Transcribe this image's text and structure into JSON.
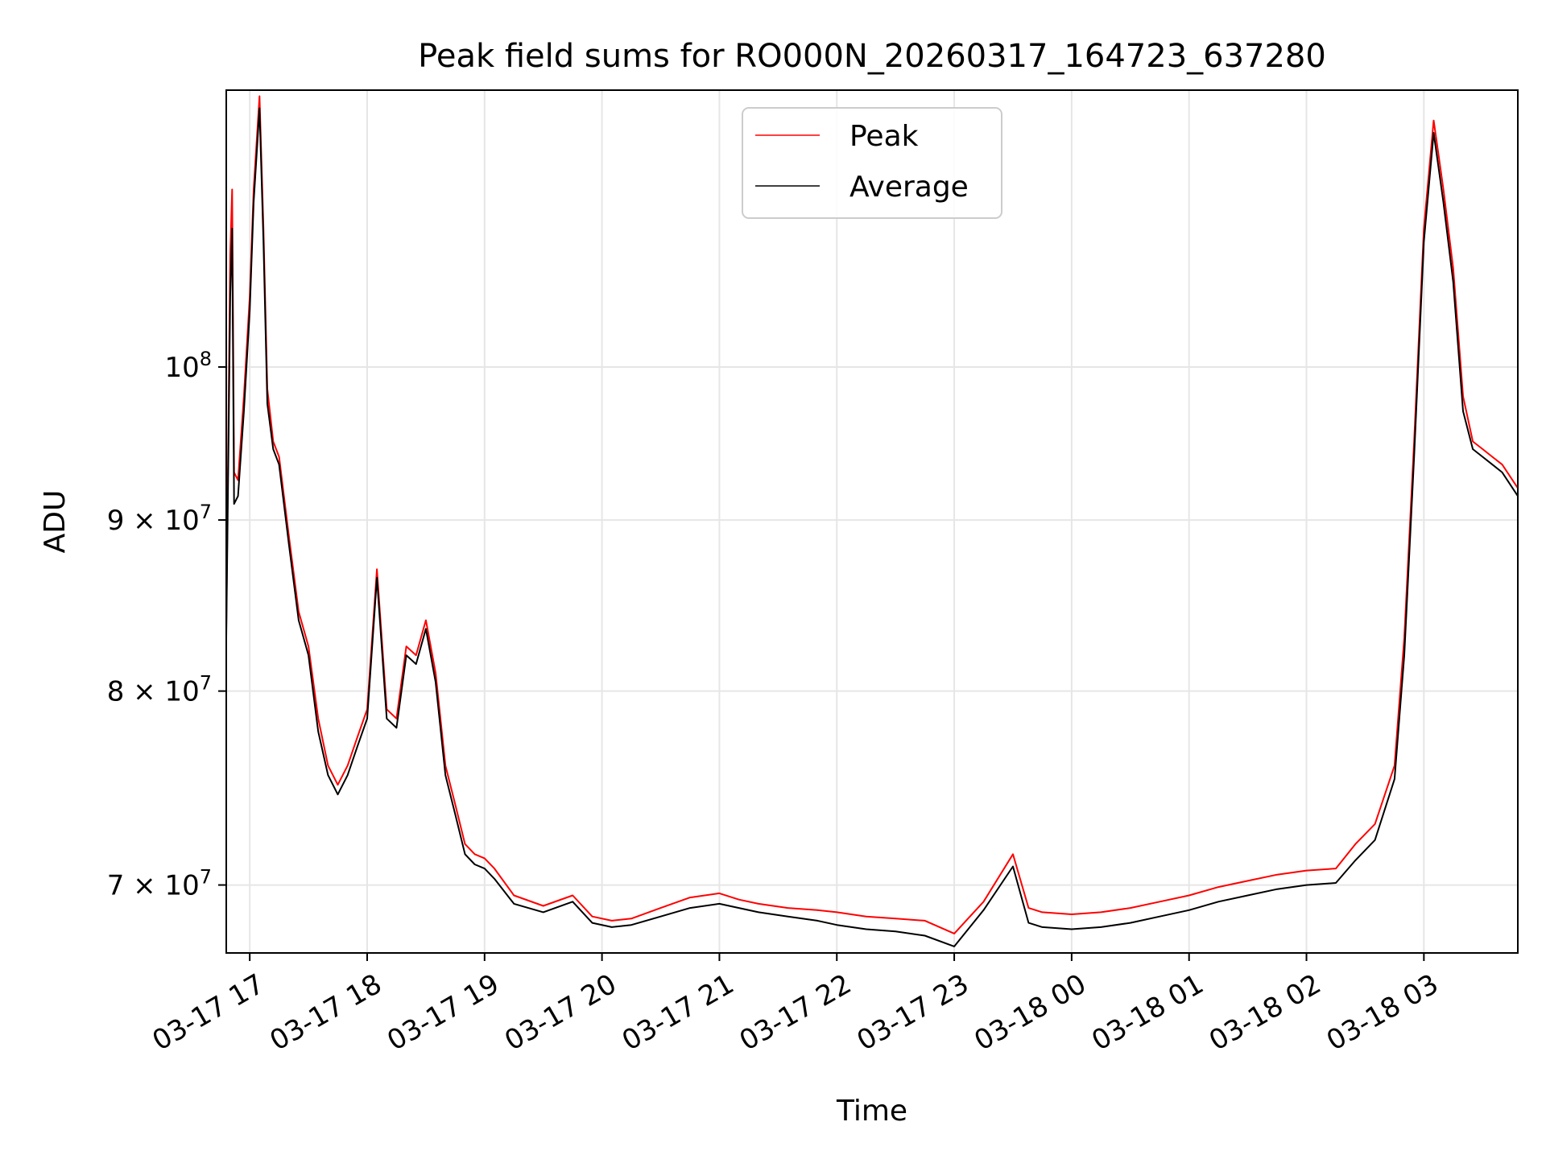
{
  "chart_data": {
    "type": "line",
    "title": "Peak field sums for RO000N_20260317_164723_637280",
    "xlabel": "Time",
    "ylabel": "ADU",
    "yscale": "log",
    "xlim": [
      "2026-03-17 16:48",
      "2026-03-18 03:48"
    ],
    "ylim": [
      66800000,
      121000000
    ],
    "grid": true,
    "legend_position": "upper center",
    "x_ticks": [
      {
        "value": "2026-03-17 17:00",
        "label": "03-17 17"
      },
      {
        "value": "2026-03-17 18:00",
        "label": "03-17 18"
      },
      {
        "value": "2026-03-17 19:00",
        "label": "03-17 19"
      },
      {
        "value": "2026-03-17 20:00",
        "label": "03-17 20"
      },
      {
        "value": "2026-03-17 21:00",
        "label": "03-17 21"
      },
      {
        "value": "2026-03-17 22:00",
        "label": "03-17 22"
      },
      {
        "value": "2026-03-17 23:00",
        "label": "03-17 23"
      },
      {
        "value": "2026-03-18 00:00",
        "label": "03-18 00"
      },
      {
        "value": "2026-03-18 01:00",
        "label": "03-18 01"
      },
      {
        "value": "2026-03-18 02:00",
        "label": "03-18 02"
      },
      {
        "value": "2026-03-18 03:00",
        "label": "03-18 03"
      }
    ],
    "y_ticks": [
      {
        "value": 70000000,
        "base": "7",
        "label_mantissa": "7 × 10",
        "exponent": "7"
      },
      {
        "value": 80000000,
        "label_mantissa": "8 × 10",
        "exponent": "7"
      },
      {
        "value": 90000000,
        "label_mantissa": "9 × 10",
        "exponent": "7"
      },
      {
        "value": 100000000,
        "label_mantissa": "10",
        "exponent": "8"
      }
    ],
    "series": [
      {
        "name": "Peak",
        "color": "#ff0000",
        "x": [
          "2026-03-17 16:48",
          "2026-03-17 16:50",
          "2026-03-17 16:51",
          "2026-03-17 16:52",
          "2026-03-17 16:54",
          "2026-03-17 16:57",
          "2026-03-17 17:00",
          "2026-03-17 17:02",
          "2026-03-17 17:05",
          "2026-03-17 17:07",
          "2026-03-17 17:09",
          "2026-03-17 17:12",
          "2026-03-17 17:15",
          "2026-03-17 17:20",
          "2026-03-17 17:25",
          "2026-03-17 17:30",
          "2026-03-17 17:35",
          "2026-03-17 17:40",
          "2026-03-17 17:45",
          "2026-03-17 17:50",
          "2026-03-17 17:55",
          "2026-03-17 18:00",
          "2026-03-17 18:05",
          "2026-03-17 18:10",
          "2026-03-17 18:15",
          "2026-03-17 18:20",
          "2026-03-17 18:25",
          "2026-03-17 18:30",
          "2026-03-17 18:35",
          "2026-03-17 18:40",
          "2026-03-17 18:45",
          "2026-03-17 18:50",
          "2026-03-17 18:55",
          "2026-03-17 19:00",
          "2026-03-17 19:05",
          "2026-03-17 19:15",
          "2026-03-17 19:30",
          "2026-03-17 19:45",
          "2026-03-17 19:55",
          "2026-03-17 20:05",
          "2026-03-17 20:15",
          "2026-03-17 20:30",
          "2026-03-17 20:45",
          "2026-03-17 21:00",
          "2026-03-17 21:10",
          "2026-03-17 21:20",
          "2026-03-17 21:35",
          "2026-03-17 21:50",
          "2026-03-17 22:00",
          "2026-03-17 22:15",
          "2026-03-17 22:30",
          "2026-03-17 22:45",
          "2026-03-17 23:00",
          "2026-03-17 23:15",
          "2026-03-17 23:30",
          "2026-03-17 23:38",
          "2026-03-17 23:45",
          "2026-03-18 00:00",
          "2026-03-18 00:15",
          "2026-03-18 00:30",
          "2026-03-18 00:45",
          "2026-03-18 01:00",
          "2026-03-18 01:15",
          "2026-03-18 01:30",
          "2026-03-18 01:45",
          "2026-03-18 02:00",
          "2026-03-18 02:15",
          "2026-03-18 02:25",
          "2026-03-18 02:35",
          "2026-03-18 02:45",
          "2026-03-18 02:50",
          "2026-03-18 02:55",
          "2026-03-18 03:00",
          "2026-03-18 03:05",
          "2026-03-18 03:10",
          "2026-03-18 03:15",
          "2026-03-18 03:20",
          "2026-03-18 03:25",
          "2026-03-18 03:30",
          "2026-03-18 03:35",
          "2026-03-18 03:40",
          "2026-03-18 03:48"
        ],
        "y": [
          83500000,
          108000000,
          113000000,
          93000000,
          92500000,
          98000000,
          105000000,
          113000000,
          120500000,
          110000000,
          98500000,
          95000000,
          94000000,
          89000000,
          84500000,
          82500000,
          78500000,
          76000000,
          75000000,
          76000000,
          77500000,
          79000000,
          87000000,
          79000000,
          78500000,
          82500000,
          82000000,
          84000000,
          81000000,
          76000000,
          74000000,
          72000000,
          71500000,
          71300000,
          70800000,
          69500000,
          69000000,
          69500000,
          68500000,
          68300000,
          68400000,
          68900000,
          69400000,
          69600000,
          69300000,
          69100000,
          68900000,
          68800000,
          68700000,
          68500000,
          68400000,
          68300000,
          67700000,
          69200000,
          71500000,
          68900000,
          68700000,
          68600000,
          68700000,
          68900000,
          69200000,
          69500000,
          69900000,
          70200000,
          70500000,
          70700000,
          70800000,
          72000000,
          73000000,
          76000000,
          83000000,
          95000000,
          110000000,
          118500000,
          113000000,
          107000000,
          98000000,
          95000000,
          94500000,
          94000000,
          93500000,
          92000000
        ]
      },
      {
        "name": "Average",
        "color": "#000000",
        "x": [
          "2026-03-17 16:48",
          "2026-03-17 16:50",
          "2026-03-17 16:51",
          "2026-03-17 16:52",
          "2026-03-17 16:54",
          "2026-03-17 16:57",
          "2026-03-17 17:00",
          "2026-03-17 17:02",
          "2026-03-17 17:05",
          "2026-03-17 17:07",
          "2026-03-17 17:09",
          "2026-03-17 17:12",
          "2026-03-17 17:15",
          "2026-03-17 17:20",
          "2026-03-17 17:25",
          "2026-03-17 17:30",
          "2026-03-17 17:35",
          "2026-03-17 17:40",
          "2026-03-17 17:45",
          "2026-03-17 17:50",
          "2026-03-17 17:55",
          "2026-03-17 18:00",
          "2026-03-17 18:05",
          "2026-03-17 18:10",
          "2026-03-17 18:15",
          "2026-03-17 18:20",
          "2026-03-17 18:25",
          "2026-03-17 18:30",
          "2026-03-17 18:35",
          "2026-03-17 18:40",
          "2026-03-17 18:45",
          "2026-03-17 18:50",
          "2026-03-17 18:55",
          "2026-03-17 19:00",
          "2026-03-17 19:05",
          "2026-03-17 19:15",
          "2026-03-17 19:30",
          "2026-03-17 19:45",
          "2026-03-17 19:55",
          "2026-03-17 20:05",
          "2026-03-17 20:15",
          "2026-03-17 20:30",
          "2026-03-17 20:45",
          "2026-03-17 21:00",
          "2026-03-17 21:10",
          "2026-03-17 21:20",
          "2026-03-17 21:35",
          "2026-03-17 21:50",
          "2026-03-17 22:00",
          "2026-03-17 22:15",
          "2026-03-17 22:30",
          "2026-03-17 22:45",
          "2026-03-17 23:00",
          "2026-03-17 23:15",
          "2026-03-17 23:30",
          "2026-03-17 23:38",
          "2026-03-17 23:45",
          "2026-03-18 00:00",
          "2026-03-18 00:15",
          "2026-03-18 00:30",
          "2026-03-18 00:45",
          "2026-03-18 01:00",
          "2026-03-18 01:15",
          "2026-03-18 01:30",
          "2026-03-18 01:45",
          "2026-03-18 02:00",
          "2026-03-18 02:15",
          "2026-03-18 02:25",
          "2026-03-18 02:35",
          "2026-03-18 02:45",
          "2026-03-18 02:50",
          "2026-03-18 02:55",
          "2026-03-18 03:00",
          "2026-03-18 03:05",
          "2026-03-18 03:10",
          "2026-03-18 03:15",
          "2026-03-18 03:20",
          "2026-03-18 03:25",
          "2026-03-18 03:30",
          "2026-03-18 03:35",
          "2026-03-18 03:40",
          "2026-03-18 03:48"
        ],
        "y": [
          83000000,
          105000000,
          110000000,
          91000000,
          91500000,
          97000000,
          104000000,
          112000000,
          119500000,
          109000000,
          97500000,
          94500000,
          93500000,
          88500000,
          84000000,
          82000000,
          77800000,
          75500000,
          74500000,
          75500000,
          77000000,
          78500000,
          86500000,
          78500000,
          78000000,
          82000000,
          81500000,
          83500000,
          80500000,
          75500000,
          73500000,
          71500000,
          71000000,
          70800000,
          70300000,
          69100000,
          68700000,
          69200000,
          68200000,
          68000000,
          68100000,
          68500000,
          68900000,
          69100000,
          68900000,
          68700000,
          68500000,
          68300000,
          68100000,
          67900000,
          67800000,
          67600000,
          67100000,
          68800000,
          70900000,
          68200000,
          68000000,
          67900000,
          68000000,
          68200000,
          68500000,
          68800000,
          69200000,
          69500000,
          69800000,
          70000000,
          70100000,
          71200000,
          72200000,
          75300000,
          82000000,
          94000000,
          109000000,
          117500000,
          112000000,
          106000000,
          97000000,
          94500000,
          94000000,
          93500000,
          93000000,
          91500000
        ]
      }
    ]
  }
}
